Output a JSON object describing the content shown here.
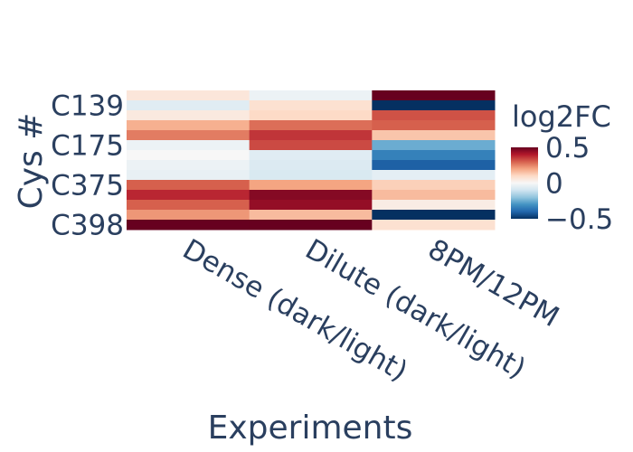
{
  "chart_data": {
    "type": "heatmap",
    "title": "",
    "xlabel": "Experiments",
    "ylabel": "Cys #",
    "x_categories": [
      "Dense (dark/light)",
      "Dilute (dark/light)",
      "8PM/12PM"
    ],
    "y_tick_labels": [
      "C139",
      "C175",
      "C375",
      "C398"
    ],
    "colorscale": "RdBu (reversed)",
    "zmin": -0.5,
    "zmax": 0.5,
    "colorbar": {
      "title": "log2FC",
      "ticks": [
        "0.5",
        "0",
        "−0.5"
      ],
      "tick_values": [
        0.5,
        0,
        -0.5
      ]
    },
    "rows": 14,
    "z": [
      [
        0.06,
        -0.03,
        0.62
      ],
      [
        -0.06,
        0.08,
        -0.62
      ],
      [
        0.05,
        0.1,
        0.32
      ],
      [
        0.18,
        0.28,
        0.3
      ],
      [
        0.26,
        0.36,
        0.14
      ],
      [
        -0.03,
        0.33,
        -0.25
      ],
      [
        0.0,
        -0.06,
        -0.34
      ],
      [
        -0.03,
        -0.07,
        -0.41
      ],
      [
        -0.04,
        -0.08,
        -0.05
      ],
      [
        0.3,
        0.2,
        0.12
      ],
      [
        0.38,
        0.46,
        0.16
      ],
      [
        0.3,
        0.44,
        0.04
      ],
      [
        0.22,
        0.16,
        -0.5
      ],
      [
        0.6,
        0.6,
        0.08
      ]
    ]
  }
}
